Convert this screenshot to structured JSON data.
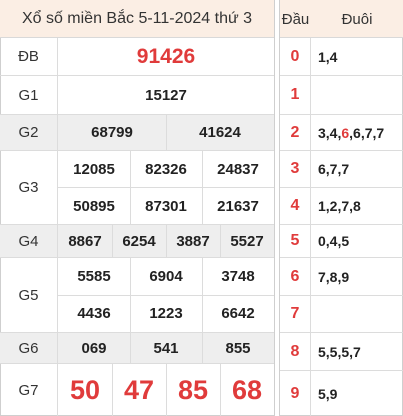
{
  "title": "Xổ số miền Bắc 5-11-2024 thứ 3",
  "prizes": {
    "db": {
      "label": "ĐB",
      "numbers": [
        "91426"
      ]
    },
    "g1": {
      "label": "G1",
      "numbers": [
        "15127"
      ]
    },
    "g2": {
      "label": "G2",
      "numbers": [
        "68799",
        "41624"
      ]
    },
    "g3": {
      "label": "G3",
      "numbers": [
        "12085",
        "82326",
        "24837",
        "50895",
        "87301",
        "21637"
      ]
    },
    "g4": {
      "label": "G4",
      "numbers": [
        "8867",
        "6254",
        "3887",
        "5527"
      ]
    },
    "g5": {
      "label": "G5",
      "numbers": [
        "5585",
        "6904",
        "3748",
        "4436",
        "1223",
        "6642"
      ]
    },
    "g6": {
      "label": "G6",
      "numbers": [
        "069",
        "541",
        "855"
      ]
    },
    "g7": {
      "label": "G7",
      "numbers": [
        "50",
        "47",
        "85",
        "68"
      ]
    }
  },
  "loto": {
    "head_label": "Đầu",
    "tail_label": "Đuôi",
    "rows": [
      {
        "head": "0",
        "tails_before": "1,4",
        "tails_highlight": "",
        "tails_after": ""
      },
      {
        "head": "1",
        "tails_before": "",
        "tails_highlight": "",
        "tails_after": ""
      },
      {
        "head": "2",
        "tails_before": "3,4,",
        "tails_highlight": "6",
        "tails_after": ",6,7,7"
      },
      {
        "head": "3",
        "tails_before": "6,7,7",
        "tails_highlight": "",
        "tails_after": ""
      },
      {
        "head": "4",
        "tails_before": "1,2,7,8",
        "tails_highlight": "",
        "tails_after": ""
      },
      {
        "head": "5",
        "tails_before": "0,4,5",
        "tails_highlight": "",
        "tails_after": ""
      },
      {
        "head": "6",
        "tails_before": "7,8,9",
        "tails_highlight": "",
        "tails_after": ""
      },
      {
        "head": "7",
        "tails_before": "",
        "tails_highlight": "",
        "tails_after": ""
      },
      {
        "head": "8",
        "tails_before": "5,5,5,7",
        "tails_highlight": "",
        "tails_after": ""
      },
      {
        "head": "9",
        "tails_before": "5,9",
        "tails_highlight": "",
        "tails_after": ""
      }
    ]
  },
  "colors": {
    "accent_red": "#e03b3b",
    "header_bg": "#fbeee4",
    "shade_row": "#eeeeee"
  }
}
